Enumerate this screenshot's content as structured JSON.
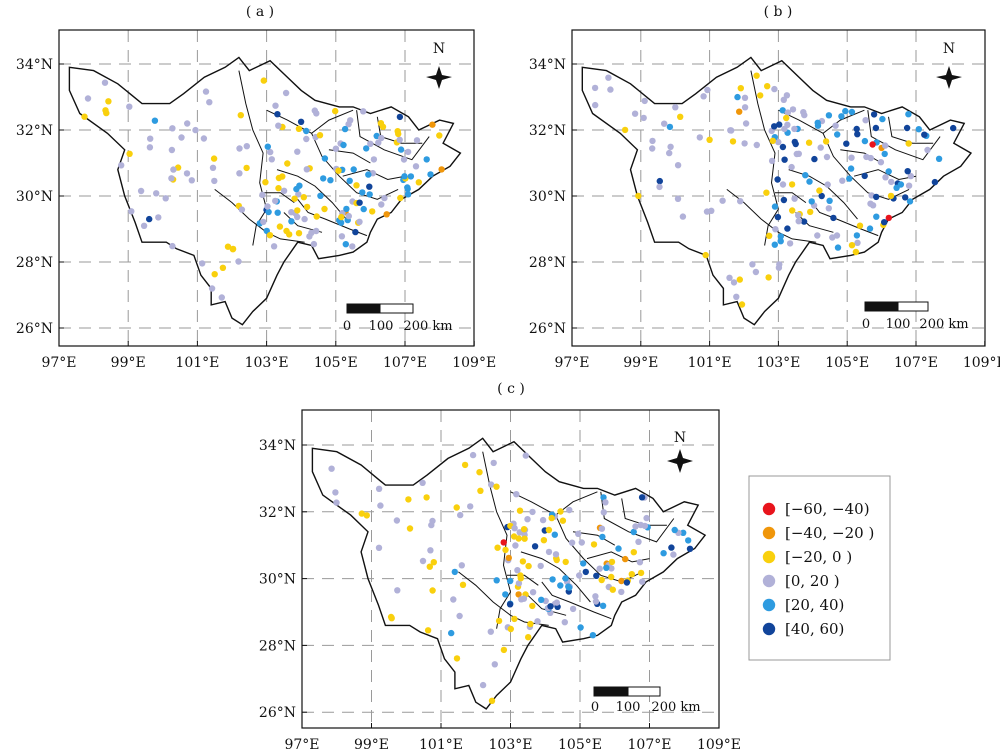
{
  "panels": [
    {
      "id": "a",
      "label": "( a )"
    },
    {
      "id": "b",
      "label": "( b )"
    },
    {
      "id": "c",
      "label": "( c )"
    }
  ],
  "axes": {
    "x_ticks": [
      "97°E",
      "99°E",
      "101°E",
      "103°E",
      "105°E",
      "107°E",
      "109°E"
    ],
    "y_ticks": [
      "26°N",
      "28°N",
      "30°N",
      "32°N",
      "34°N"
    ],
    "lon_range": [
      97,
      109
    ],
    "lat_range": [
      25.9,
      35
    ],
    "grid": true
  },
  "north_arrow": "N",
  "scale_bar": {
    "labels": [
      "0",
      "100",
      "200 km"
    ]
  },
  "legend": {
    "placement": "right of panel c",
    "items": [
      {
        "label": "[−60, −40)",
        "color": "#e8141c"
      },
      {
        "label": "[−40, −20 )",
        "color": "#f0960a"
      },
      {
        "label": "[−20, 0 )",
        "color": "#f9d00d"
      },
      {
        "label": "[0, 20 )",
        "color": "#b1b1d8"
      },
      {
        "label": "[20, 40)",
        "color": "#2e9be0"
      },
      {
        "label": "[40, 60)",
        "color": "#11449a"
      }
    ]
  }
}
